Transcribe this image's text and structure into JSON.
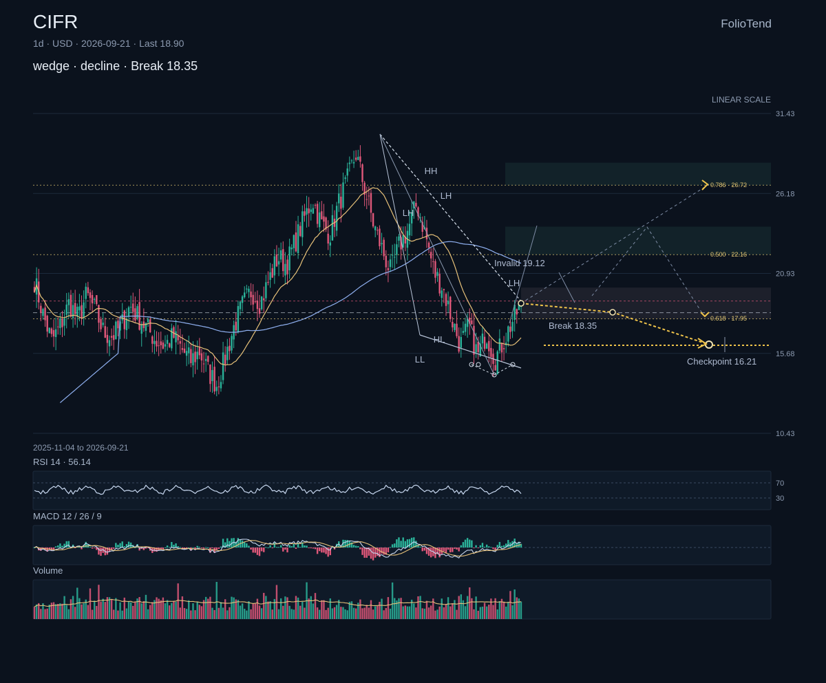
{
  "header": {
    "ticker": "CIFR",
    "meta": "1d · USD · 2026-09-21 · Last 18.90",
    "pattern": "wedge · decline · Break 18.35",
    "brand": "FolioTend",
    "scale": "LINEAR SCALE",
    "range": "2025-11-04 to 2026-09-21"
  },
  "panels": {
    "rsi_title": "RSI 14 · 56.14",
    "rsi_levels": [
      "70",
      "30"
    ],
    "macd_title": "MACD 12 / 26 / 9",
    "volume_title": "Volume"
  },
  "colors": {
    "up": "#2bb39a",
    "down": "#e0587a",
    "sma_short": "#e8c27a",
    "sma_long": "#8fb0f0",
    "fib": "#e0c472",
    "background": "#0b121d",
    "panel": "#0f1a28"
  },
  "chart_data": {
    "type": "candlestick",
    "y_axis": {
      "ticks": [
        31.43,
        26.18,
        20.93,
        15.68,
        10.43
      ],
      "ylim": [
        10.43,
        31.43
      ],
      "scale": "linear"
    },
    "date_range": [
      "2025-11-04",
      "2026-09-21"
    ],
    "last": 18.9,
    "price_path_keypoints": [
      20.5,
      18.2,
      16.5,
      17.5,
      19.0,
      18.0,
      19.5,
      18.5,
      17.0,
      16.8,
      17.5,
      18.8,
      18.0,
      17.3,
      16.5,
      16.2,
      16.8,
      15.9,
      15.2,
      15.8,
      14.5,
      13.6,
      15.5,
      17.5,
      18.9,
      19.8,
      19.0,
      20.5,
      22.0,
      21.5,
      23.0,
      24.5,
      25.8,
      24.2,
      23.5,
      25.5,
      27.0,
      28.8,
      26.5,
      24.2,
      22.5,
      21.0,
      22.8,
      23.8,
      25.5,
      23.5,
      21.0,
      20.0,
      18.0,
      16.2,
      17.5,
      15.5,
      17.0,
      15.3,
      16.5,
      17.8,
      18.9
    ],
    "levels": {
      "break": 18.35,
      "invalid": 19.12,
      "checkpoint": 16.21,
      "fib_786": 26.72,
      "fib_500": 22.16,
      "fib_618": 17.95
    },
    "annotations": {
      "labels": [
        "HH",
        "LH",
        "LH",
        "LH",
        "HL",
        "LL"
      ],
      "fib_786_label": "0.786 · 26.72",
      "fib_500_label": "0.500 · 22.16",
      "fib_618_label": "0.618 · 17.95",
      "break_label": "Break 18.35",
      "invalid_label": "Invalid 19.12",
      "checkpoint_label": "Checkpoint 16.21"
    },
    "indicators": {
      "sma_short": "yellow moving average",
      "sma_long": "blue moving average",
      "rsi": {
        "period": 14,
        "value": 56.14,
        "levels": [
          70,
          30
        ]
      },
      "macd": {
        "fast": 12,
        "slow": 26,
        "signal": 9
      }
    }
  }
}
